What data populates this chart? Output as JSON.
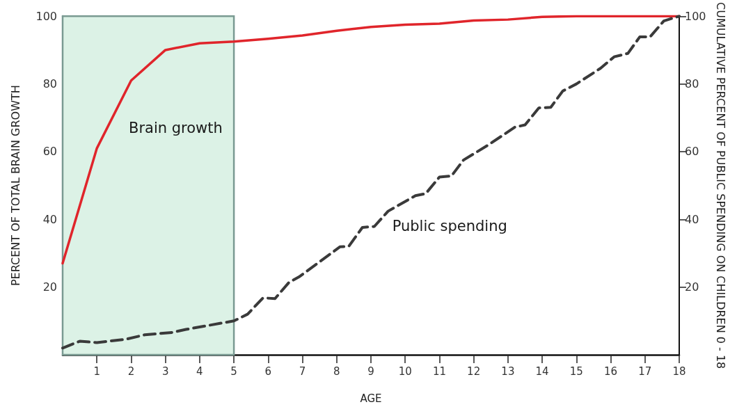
{
  "chart_data": {
    "type": "line",
    "xlabel": "AGE",
    "ylabel": "PERCENT OF TOTAL BRAIN GROWTH",
    "y2label": "CUMULATIVE PERCENT OF PUBLIC SPENDING ON CHILDREN 0 - 18",
    "xlim": [
      0,
      18
    ],
    "xticks": [
      1,
      2,
      3,
      4,
      5,
      6,
      7,
      8,
      9,
      10,
      11,
      12,
      13,
      14,
      15,
      16,
      17,
      18
    ],
    "ylim": [
      0,
      100
    ],
    "yticks": [
      20,
      40,
      60,
      80,
      100
    ],
    "y2lim": [
      0,
      100
    ],
    "y2ticks": [
      20,
      40,
      60,
      80,
      100
    ],
    "grid": false,
    "marker": "none",
    "series": [
      {
        "color": "#e0252b",
        "line_style": "solid",
        "x": [
          0,
          1,
          2,
          3,
          4,
          5,
          6,
          7,
          8,
          9,
          10,
          11,
          12,
          13,
          14,
          15,
          18
        ],
        "values": [
          27,
          61,
          81,
          90,
          92,
          92.5,
          93.3,
          94.3,
          95.7,
          96.8,
          97.5,
          97.8,
          98.7,
          99,
          99.8,
          100,
          100
        ]
      },
      {
        "color": "#3a3a3a",
        "line_style": "dashed",
        "x": [
          0,
          0.5,
          1,
          1.85,
          2.4,
          3.2,
          3.6,
          5,
          5.4,
          5.85,
          6.2,
          6.6,
          6.9,
          8.1,
          8.35,
          8.75,
          9.1,
          9.5,
          10.3,
          10.6,
          11,
          11.35,
          11.7,
          12.4,
          13.2,
          13.5,
          13.9,
          14.25,
          14.6,
          15,
          15.7,
          16.1,
          16.5,
          16.85,
          17.15,
          17.55,
          18
        ],
        "values": [
          2,
          4,
          3.6,
          4.6,
          5.9,
          6.6,
          7.5,
          10,
          12,
          16.8,
          16.6,
          21.3,
          23,
          31.9,
          32,
          37.6,
          37.9,
          42.4,
          47,
          47.6,
          52.5,
          52.8,
          57.5,
          61.8,
          67.2,
          67.9,
          72.9,
          73.1,
          77.9,
          80,
          84.6,
          88,
          89,
          93.9,
          93.9,
          98.6,
          100
        ]
      }
    ],
    "bands": [
      {
        "axis": "x",
        "from": 0,
        "to": 5,
        "color": "#dcf2e6"
      }
    ],
    "annotations": [
      "Brain growth",
      "Public spending"
    ]
  }
}
